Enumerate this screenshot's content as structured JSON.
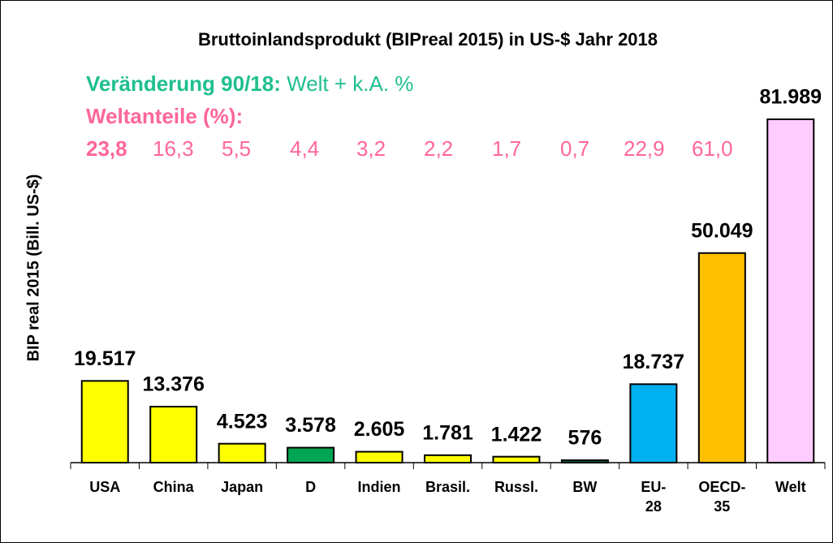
{
  "chart_data": {
    "type": "bar",
    "title": "Bruttoinlandsprodukt (BIPreal 2015) in US-$ Jahr 2018",
    "y_label": "BIP real 2015 (Bill. US-$)",
    "annotations": {
      "change_label": "Veränderung 90/18:",
      "change_text": "Welt + k.A. %",
      "shares_label": "Weltanteile (%):",
      "shares": [
        "23,8",
        "16,3",
        "5,5",
        "4,4",
        "3,2",
        "2,2",
        "1,7",
        "0,7",
        "22,9",
        "61,0"
      ]
    },
    "categories": [
      "USA",
      "China",
      "Japan",
      "D",
      "Indien",
      "Brasil.",
      "Russl.",
      "BW",
      "EU-28",
      "OECD-35",
      "Welt"
    ],
    "values": [
      19517,
      13376,
      4523,
      3578,
      2605,
      1781,
      1422,
      576,
      18737,
      50049,
      81989
    ],
    "value_labels": [
      "19.517",
      "13.376",
      "4.523",
      "3.578",
      "2.605",
      "1.781",
      "1.422",
      "576",
      "18.737",
      "50.049",
      "81.989"
    ],
    "colors": [
      "#ffff00",
      "#ffff00",
      "#ffff00",
      "#00a651",
      "#ffff00",
      "#ffff00",
      "#ffff00",
      "#006633",
      "#00b0f0",
      "#ffc000",
      "#ffccff"
    ],
    "ylim": [
      0,
      94000
    ]
  }
}
